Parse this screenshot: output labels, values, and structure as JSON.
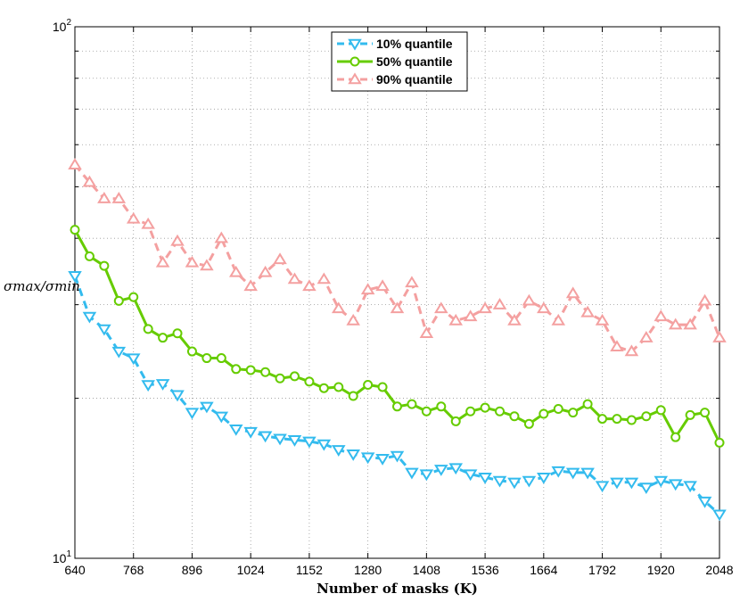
{
  "chart_data": {
    "type": "line",
    "xlabel": "Number of masks (K)",
    "ylabel": "σmax/σmin",
    "xlim": [
      640,
      2048
    ],
    "ylim": [
      10,
      100
    ],
    "yscale": "log",
    "xticks": [
      640,
      768,
      896,
      1024,
      1152,
      1280,
      1408,
      1536,
      1664,
      1792,
      1920,
      2048
    ],
    "yticks": [
      {
        "value": 10,
        "label": "10",
        "sup": "1"
      },
      {
        "value": 100,
        "label": "10",
        "sup": "2"
      }
    ],
    "grid": true,
    "legend_position": "top-center",
    "x": [
      640,
      672,
      704,
      736,
      768,
      800,
      832,
      864,
      896,
      928,
      960,
      992,
      1024,
      1056,
      1088,
      1120,
      1152,
      1184,
      1216,
      1248,
      1280,
      1312,
      1344,
      1376,
      1408,
      1440,
      1472,
      1504,
      1536,
      1568,
      1600,
      1632,
      1664,
      1696,
      1728,
      1760,
      1792,
      1824,
      1856,
      1888,
      1920,
      1952,
      1984,
      2016,
      2048
    ],
    "series": [
      {
        "name": "10% quantile",
        "color": "#33bbee",
        "marker": "triangle-down",
        "dash": true,
        "values": [
          34,
          28.5,
          27,
          24.5,
          23.8,
          21.2,
          21.3,
          20.3,
          18.8,
          19.3,
          18.5,
          17.5,
          17.3,
          17.0,
          16.8,
          16.7,
          16.6,
          16.4,
          16.0,
          15.7,
          15.5,
          15.4,
          15.6,
          14.5,
          14.4,
          14.7,
          14.8,
          14.4,
          14.2,
          14.0,
          13.9,
          14.0,
          14.2,
          14.6,
          14.5,
          14.5,
          13.7,
          13.9,
          13.9,
          13.6,
          14.0,
          13.8,
          13.7,
          12.8,
          12.1
        ]
      },
      {
        "name": "50% quantile",
        "color": "#66cc00",
        "marker": "circle",
        "dash": false,
        "values": [
          41.5,
          37,
          35.5,
          30.5,
          31.0,
          27.0,
          26.0,
          26.5,
          24.5,
          23.8,
          23.8,
          22.7,
          22.6,
          22.4,
          21.8,
          22.0,
          21.5,
          20.9,
          21.0,
          20.2,
          21.2,
          21.0,
          19.3,
          19.5,
          18.9,
          19.3,
          18.1,
          18.9,
          19.2,
          18.9,
          18.5,
          17.9,
          18.7,
          19.1,
          18.8,
          19.5,
          18.3,
          18.3,
          18.2,
          18.5,
          19.0,
          16.9,
          18.6,
          18.8,
          16.5
        ]
      },
      {
        "name": "90% quantile",
        "color": "#f4a0a0",
        "marker": "triangle-up",
        "dash": true,
        "values": [
          55,
          51,
          47.5,
          47.5,
          43.5,
          42.5,
          36,
          39.5,
          36,
          35.5,
          40,
          34.5,
          32.5,
          34.5,
          36.5,
          33.5,
          32.5,
          33.5,
          29.5,
          28,
          32,
          32.5,
          29.5,
          33,
          26.5,
          29.5,
          28,
          28.5,
          29.5,
          30,
          28,
          30.5,
          29.5,
          28,
          31.5,
          29,
          28,
          25,
          24.5,
          26,
          28.5,
          27.5,
          27.5,
          30.5,
          26
        ]
      }
    ]
  }
}
